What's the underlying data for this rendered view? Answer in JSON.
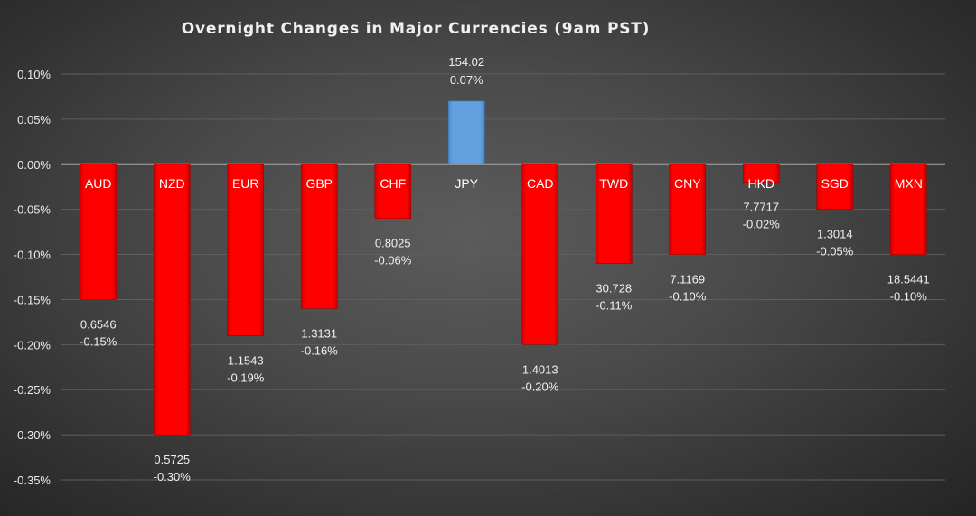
{
  "chart_data": {
    "type": "bar",
    "title": "Overnight Changes in Major Currencies (9am PST)",
    "categories": [
      "AUD",
      "NZD",
      "EUR",
      "GBP",
      "CHF",
      "JPY",
      "CAD",
      "TWD",
      "CNY",
      "HKD",
      "SGD",
      "MXN"
    ],
    "values": [
      -0.15,
      -0.3,
      -0.19,
      -0.16,
      -0.06,
      0.07,
      -0.2,
      -0.11,
      -0.1,
      -0.02,
      -0.05,
      -0.1
    ],
    "value_unit": "%",
    "percent_labels": [
      "-0.15%",
      "-0.30%",
      "-0.19%",
      "-0.16%",
      "-0.06%",
      "0.07%",
      "-0.20%",
      "-0.11%",
      "-0.10%",
      "-0.02%",
      "-0.05%",
      "-0.10%"
    ],
    "rate_labels": [
      "0.6546",
      "0.5725",
      "1.1543",
      "1.3131",
      "0.8025",
      "154.02",
      "1.4013",
      "30.728",
      "7.1169",
      "7.7717",
      "1.3014",
      "18.5441"
    ],
    "ylim": [
      -0.35,
      0.1
    ],
    "yticks": [
      0.1,
      0.05,
      0.0,
      -0.05,
      -0.1,
      -0.15,
      -0.2,
      -0.25,
      -0.3,
      -0.35
    ],
    "ytick_labels": [
      "0.10%",
      "0.05%",
      "0.00%",
      "-0.05%",
      "-0.10%",
      "-0.15%",
      "-0.20%",
      "-0.25%",
      "-0.30%",
      "-0.35%"
    ],
    "xlabel": "",
    "ylabel": "",
    "grid": true,
    "legend": "none",
    "colors": {
      "negative": "#ff0000",
      "positive": "#5b9bd5",
      "text": "#ffffff",
      "background": "#4a4a4a"
    }
  }
}
